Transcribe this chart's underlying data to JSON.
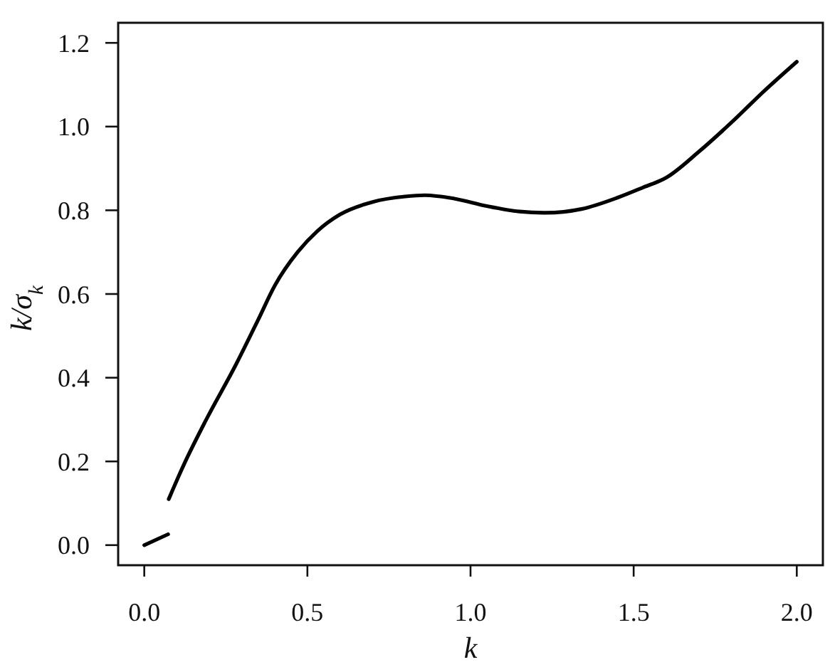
{
  "chart_data": {
    "type": "line",
    "xlabel": "k",
    "ylabel": "k/σ$_{k}$",
    "series": [
      {
        "color": "#000000",
        "x": [
          0,
          0.073
        ],
        "values": [
          0,
          0.026
        ]
      },
      {
        "color": "#000000",
        "x": [
          0.075,
          0.12,
          0.19,
          0.28,
          0.35,
          0.4,
          0.47,
          0.53,
          0.6,
          0.7,
          0.8,
          0.86,
          0.95,
          1.05,
          1.15,
          1.23,
          1.34,
          1.45,
          1.53,
          1.6,
          1.7,
          1.8,
          1.9,
          2.0
        ],
        "values": [
          0.11,
          0.19,
          0.3,
          0.43,
          0.54,
          0.62,
          0.7,
          0.75,
          0.79,
          0.82,
          0.833,
          0.836,
          0.828,
          0.81,
          0.797,
          0.794,
          0.803,
          0.83,
          0.855,
          0.878,
          0.94,
          1.01,
          1.085,
          1.155
        ]
      }
    ],
    "xlim": [
      -0.08,
      2.08
    ],
    "ylim": [
      -0.048,
      1.248
    ],
    "xticks": [
      {
        "value": 0,
        "label": "0.0"
      },
      0.5,
      {
        "value": 1,
        "label": "1.0"
      },
      1.5,
      {
        "value": 2,
        "label": "2.0"
      }
    ],
    "yticks": [
      {
        "value": 0,
        "label": "0.0"
      },
      0.2,
      0.4,
      0.6,
      0.8,
      {
        "value": 1,
        "label": "1.0"
      },
      1.2
    ],
    "line_style": "solid"
  }
}
